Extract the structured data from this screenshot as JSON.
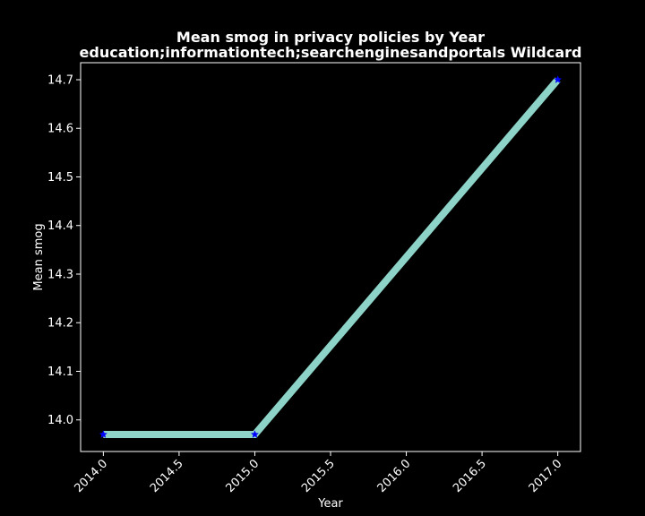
{
  "chart_data": {
    "type": "line",
    "title": "Mean smog in privacy policies by Year",
    "subtitle": "education;informationtech;searchenginesandportals Wildcard",
    "xlabel": "Year",
    "ylabel": "Mean smog",
    "x": [
      2014,
      2015,
      2017
    ],
    "series": [
      {
        "values": [
          13.97,
          13.97,
          14.7
        ],
        "line_color": "#8dd3c7",
        "marker": "star",
        "marker_color": "#0000ff"
      }
    ],
    "xlim": [
      2013.85,
      2017.15
    ],
    "ylim": [
      13.935,
      14.735
    ],
    "xticks": [
      2014.0,
      2014.5,
      2015.0,
      2015.5,
      2016.0,
      2016.5,
      2017.0
    ],
    "xtick_labels": [
      "2014.0",
      "2014.5",
      "2015.0",
      "2015.5",
      "2016.0",
      "2016.5",
      "2017.0"
    ],
    "yticks": [
      14.0,
      14.1,
      14.2,
      14.3,
      14.4,
      14.5,
      14.6,
      14.7
    ],
    "ytick_labels": [
      "14.0",
      "14.1",
      "14.2",
      "14.3",
      "14.4",
      "14.5",
      "14.6",
      "14.7"
    ],
    "grid": false,
    "legend": "none",
    "background_color": "#000000",
    "text_color": "#ffffff"
  }
}
